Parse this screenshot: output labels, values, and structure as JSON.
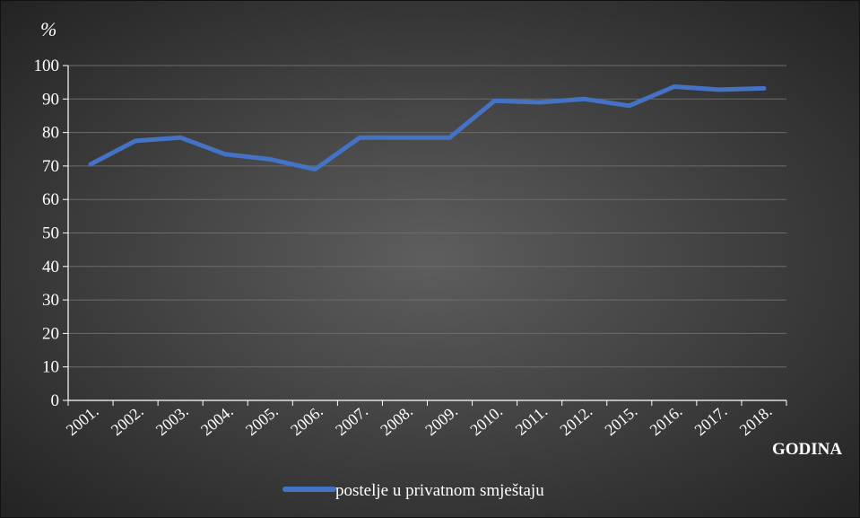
{
  "colors": {
    "background_center": "#5e5e5e",
    "background_edge": "#1f1f1f",
    "border": "#111111",
    "gridline": "#6b6b6b",
    "axis": "#ffffff",
    "text": "#ffffff",
    "series": "#4472c4"
  },
  "chart_data": {
    "type": "line",
    "title": "",
    "ylabel": "%",
    "xlabel": "GODINA",
    "ylim": [
      0,
      100
    ],
    "yticks": [
      0,
      10,
      20,
      30,
      40,
      50,
      60,
      70,
      80,
      90,
      100
    ],
    "grid": true,
    "legend_position": "bottom",
    "categories": [
      "2001.",
      "2002.",
      "2003.",
      "2004.",
      "2005.",
      "2006.",
      "2007.",
      "2008.",
      "2009.",
      "2010.",
      "2011.",
      "2012.",
      "2015.",
      "2016.",
      "2017.",
      "2018."
    ],
    "series": [
      {
        "name": "postelje u privatnom smještaju",
        "color": "#4472c4",
        "values": [
          70.5,
          77.5,
          78.5,
          73.5,
          72,
          69,
          78.5,
          78.5,
          78.5,
          89.5,
          89,
          90,
          88,
          93.7,
          92.8,
          93.2
        ]
      }
    ]
  }
}
